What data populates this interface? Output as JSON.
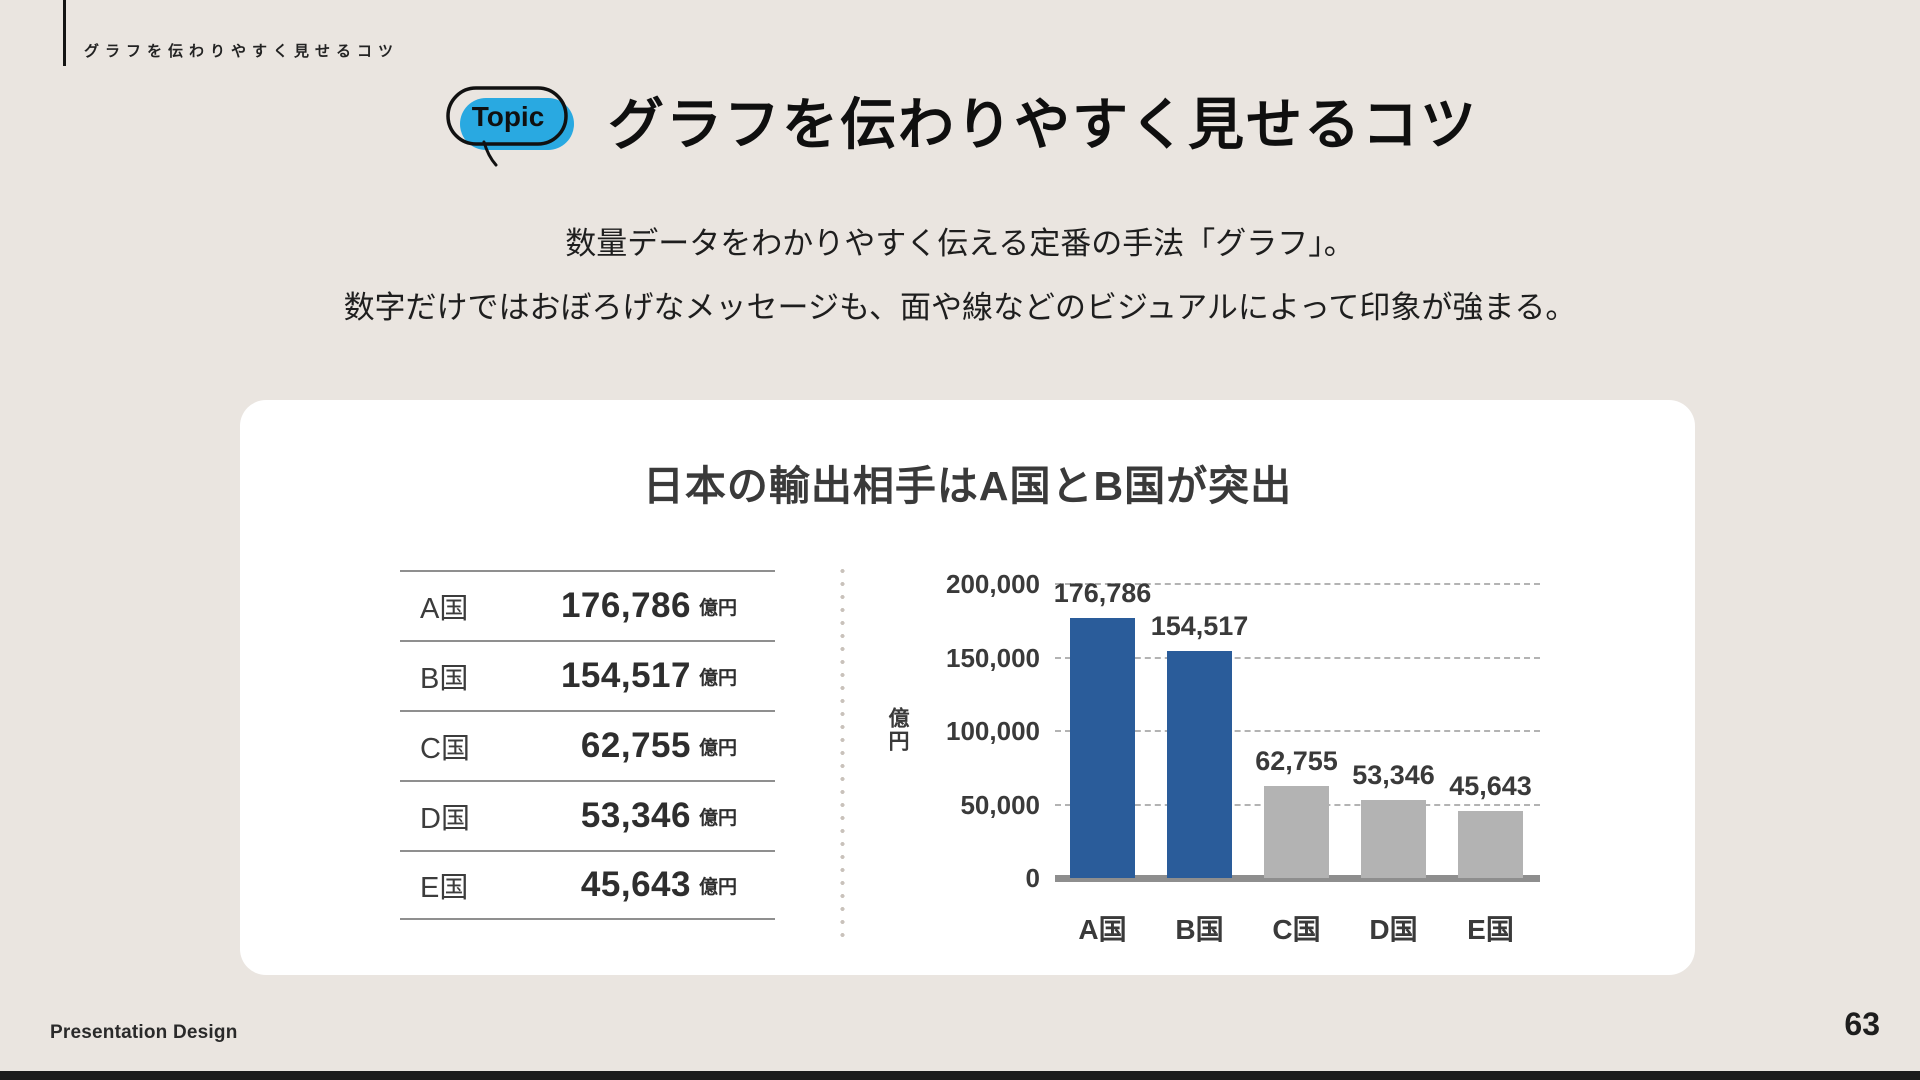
{
  "header": {
    "label": "グラフを伝わりやすく見せるコツ"
  },
  "topic_badge": {
    "label": "Topic",
    "color": "#29A9E1"
  },
  "title": "グラフを伝わりやすく見せるコツ",
  "intro": {
    "line1": "数量データをわかりやすく伝える定番の手法「グラフ」。",
    "line2": "数字だけではおぼろげなメッセージも、面や線などのビジュアルによって印象が強まる。"
  },
  "card": {
    "chart_title": "日本の輸出相手はA国とB国が突出"
  },
  "table": {
    "rows": [
      {
        "label": "A国",
        "value": "176,786",
        "unit": "億円"
      },
      {
        "label": "B国",
        "value": "154,517",
        "unit": "億円"
      },
      {
        "label": "C国",
        "value": "62,755",
        "unit": "億円"
      },
      {
        "label": "D国",
        "value": "53,346",
        "unit": "億円"
      },
      {
        "label": "E国",
        "value": "45,643",
        "unit": "億円"
      }
    ]
  },
  "chart_data": {
    "type": "bar",
    "title": "日本の輸出相手はA国とB国が突出",
    "categories": [
      "A国",
      "B国",
      "C国",
      "D国",
      "E国"
    ],
    "values": [
      176786,
      154517,
      62755,
      53346,
      45643
    ],
    "value_labels": [
      "176,786",
      "154,517",
      "62,755",
      "53,346",
      "45,643"
    ],
    "ylabel": "億円",
    "ylim": [
      0,
      200000
    ],
    "yticks": [
      0,
      50000,
      100000,
      150000,
      200000
    ],
    "ytick_labels": [
      "0",
      "50,000",
      "100,000",
      "150,000",
      "200,000"
    ],
    "grid": "horizontal dashed",
    "legend": "none",
    "bar_colors": [
      "#2A5C9A",
      "#2A5C9A",
      "#B3B3B3",
      "#B3B3B3",
      "#B3B3B3"
    ]
  },
  "footer": {
    "brand": "Presentation Design",
    "page": "63"
  },
  "colors": {
    "background": "#EAE5E0",
    "card": "#FFFFFF",
    "badge_blue": "#29A9E1",
    "bar_highlight": "#2A5C9A",
    "bar_muted": "#B3B3B3",
    "chart_text": "#3A3A3A"
  }
}
